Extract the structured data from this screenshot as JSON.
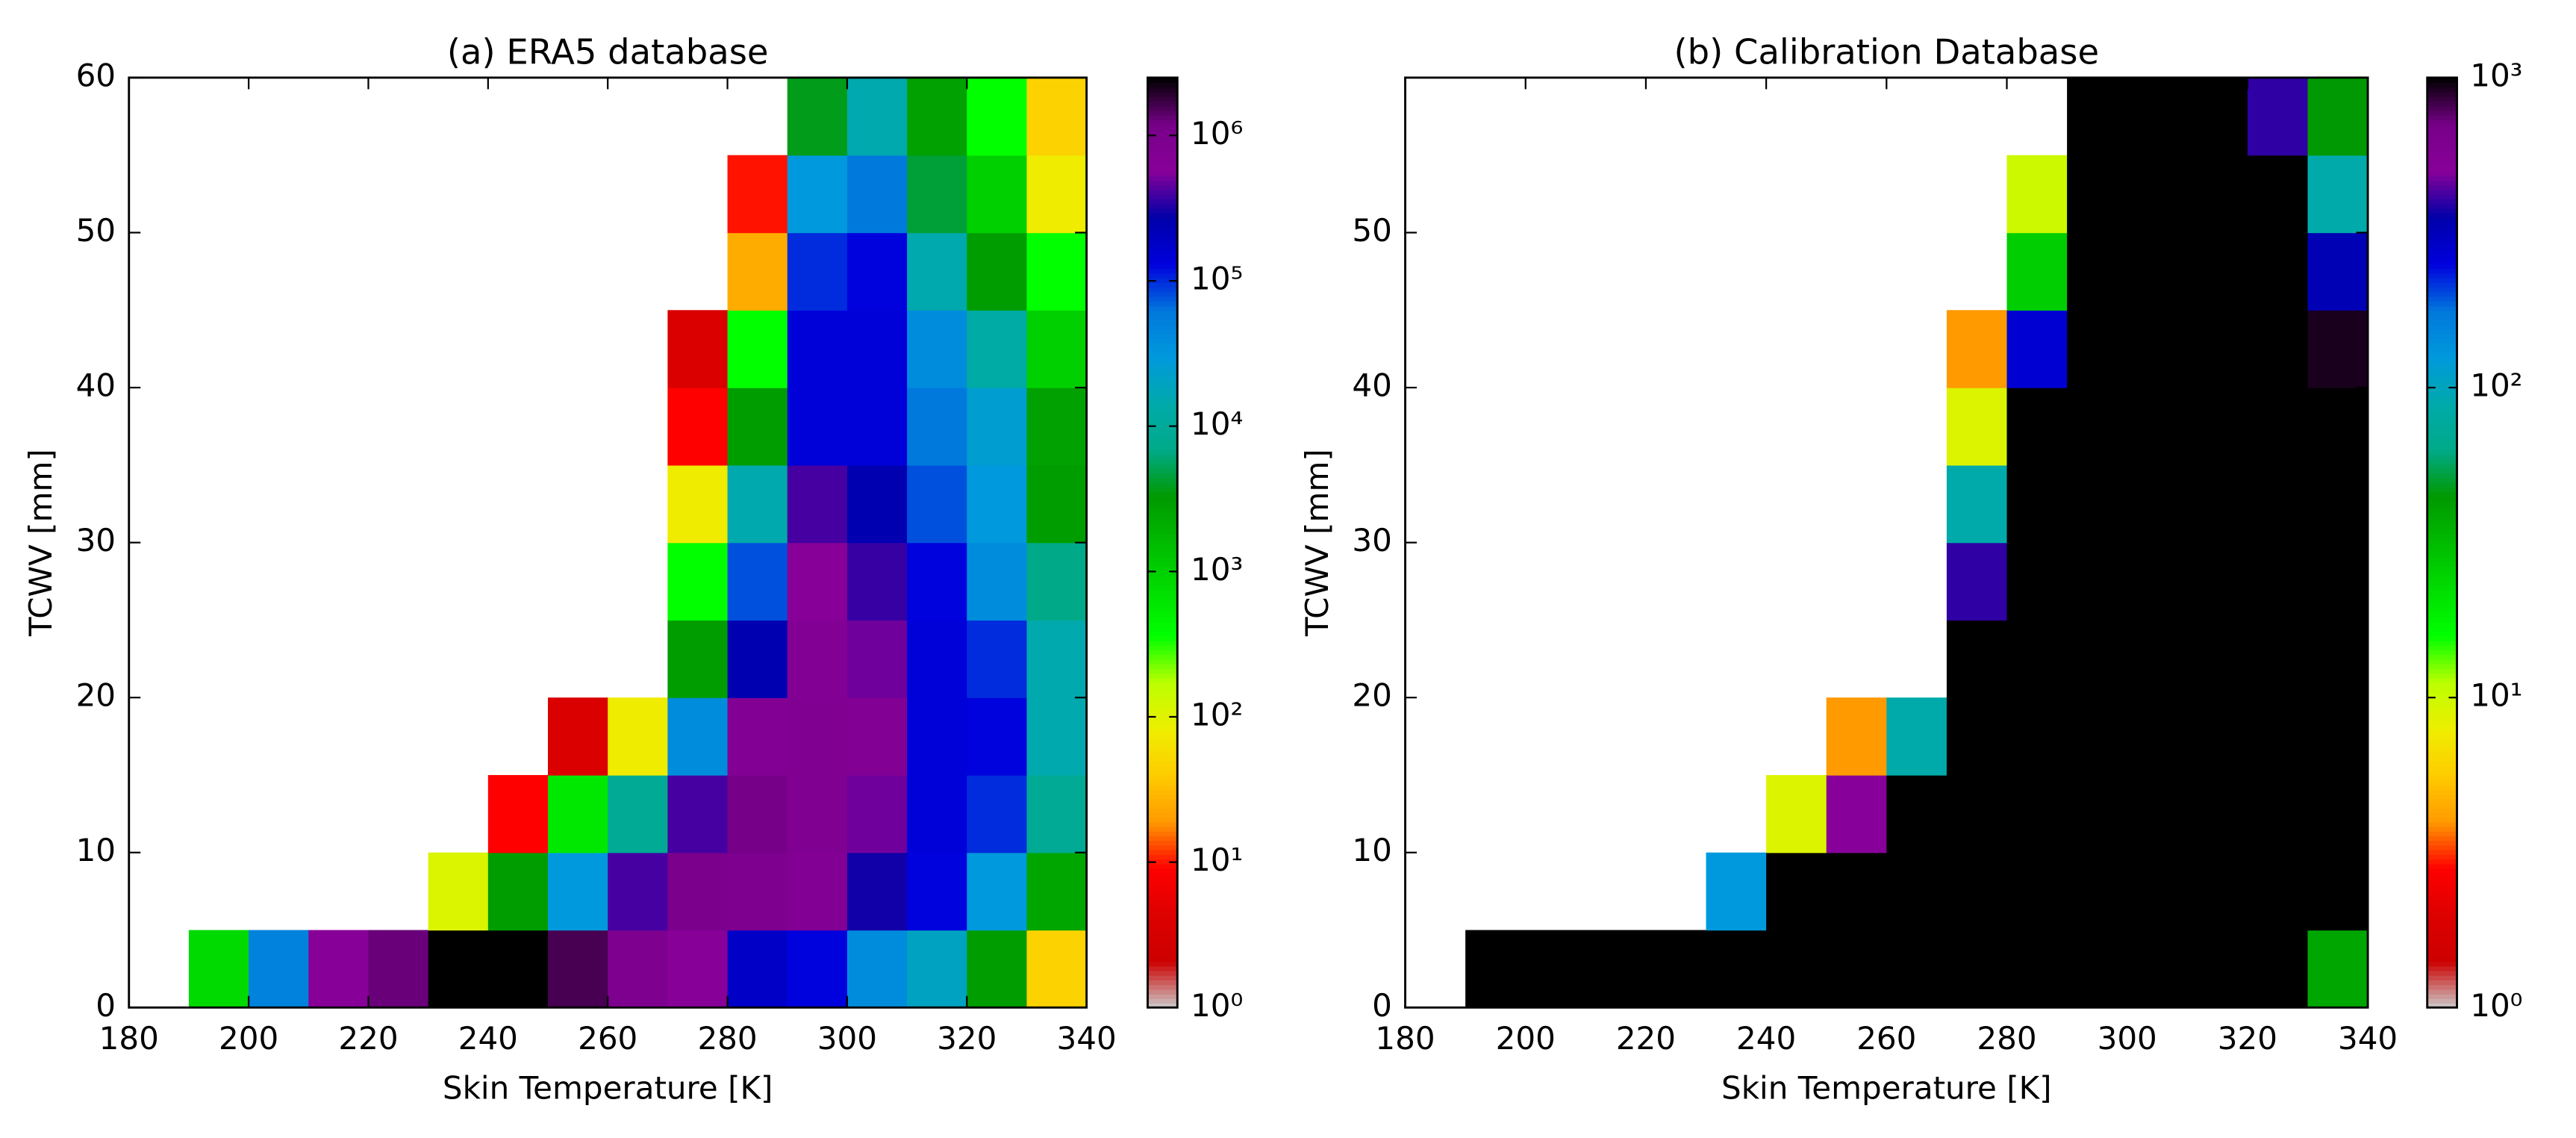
{
  "chart_data": [
    {
      "type": "heatmap",
      "title": "(a) ERA5 database",
      "xlabel": "Skin Temperature [K]",
      "ylabel": "TCWV [mm]",
      "x": [
        180,
        190,
        200,
        210,
        220,
        230,
        240,
        250,
        260,
        270,
        280,
        290,
        300,
        310,
        320,
        330,
        340
      ],
      "y": [
        0,
        5,
        10,
        15,
        20,
        25,
        30,
        35,
        40,
        45,
        50,
        55,
        60
      ],
      "values": [
        [
          null,
          800,
          50000,
          600000,
          1300000,
          2500000,
          2500000,
          1600000,
          900000,
          600000,
          180000,
          130000,
          40000,
          20000,
          3000,
          46
        ],
        [
          null,
          null,
          null,
          null,
          null,
          110,
          3000,
          30000,
          400000,
          1000000,
          900000,
          700000,
          300000,
          130000,
          30000,
          2500
        ],
        [
          null,
          null,
          null,
          null,
          null,
          null,
          9,
          600,
          9000,
          400000,
          1200000,
          800000,
          500000,
          140000,
          100000,
          9000
        ],
        [
          null,
          null,
          null,
          null,
          null,
          null,
          null,
          4,
          80,
          40000,
          700000,
          800000,
          700000,
          140000,
          130000,
          15000
        ],
        [
          null,
          null,
          null,
          null,
          null,
          null,
          null,
          null,
          null,
          3000,
          250000,
          700000,
          500000,
          140000,
          100000,
          15000
        ],
        [
          null,
          null,
          null,
          null,
          null,
          null,
          null,
          null,
          null,
          360,
          80000,
          600000,
          370000,
          130000,
          40000,
          7000
        ],
        [
          null,
          null,
          null,
          null,
          null,
          null,
          null,
          null,
          null,
          80,
          15000,
          400000,
          250000,
          80000,
          30000,
          3000
        ],
        [
          null,
          null,
          null,
          null,
          null,
          null,
          null,
          null,
          null,
          9,
          3000,
          140000,
          140000,
          60000,
          25000,
          2800
        ],
        [
          null,
          null,
          null,
          null,
          null,
          null,
          null,
          null,
          null,
          4,
          360,
          140000,
          140000,
          40000,
          13000,
          1000
        ],
        [
          null,
          null,
          null,
          null,
          null,
          null,
          null,
          null,
          null,
          null,
          25,
          100000,
          130000,
          15000,
          3000,
          360
        ],
        [
          null,
          null,
          null,
          null,
          null,
          null,
          null,
          null,
          null,
          null,
          10,
          30000,
          60000,
          4500,
          1000,
          80
        ],
        [
          null,
          null,
          null,
          null,
          null,
          null,
          null,
          null,
          null,
          null,
          null,
          3800,
          15000,
          2800,
          360,
          46
        ]
      ],
      "xlim": [
        180,
        340
      ],
      "ylim": [
        0,
        60
      ],
      "xticks": [
        180,
        200,
        220,
        240,
        260,
        280,
        300,
        320,
        340
      ],
      "yticks": [
        0,
        10,
        20,
        30,
        40,
        50,
        60
      ],
      "colormap": "nipy_spectral_r",
      "log_color": true,
      "clim": [
        1,
        2500000
      ],
      "cticks": [
        {
          "value": 1,
          "label": "10⁰"
        },
        {
          "value": 10,
          "label": "10¹"
        },
        {
          "value": 100,
          "label": "10²"
        },
        {
          "value": 1000,
          "label": "10³"
        },
        {
          "value": 10000,
          "label": "10⁴"
        },
        {
          "value": 100000,
          "label": "10⁵"
        },
        {
          "value": 1000000,
          "label": "10⁶"
        }
      ]
    },
    {
      "type": "heatmap",
      "title": "(b) Calibration Database",
      "xlabel": "Skin Temperature [K]",
      "ylabel": "TCWV [mm]",
      "x": [
        180,
        190,
        200,
        210,
        220,
        230,
        240,
        250,
        260,
        270,
        280,
        290,
        300,
        310,
        320,
        330,
        340
      ],
      "y": [
        0,
        5,
        10,
        15,
        20,
        25,
        30,
        35,
        40,
        45,
        50,
        55,
        60
      ],
      "values": [
        [
          null,
          1000,
          1000,
          1000,
          1000,
          1000,
          1000,
          1000,
          1000,
          1000,
          1000,
          1000,
          1000,
          1000,
          1000,
          39
        ],
        [
          null,
          null,
          null,
          null,
          null,
          126,
          1000,
          1000,
          1000,
          1000,
          1000,
          1000,
          1000,
          1000,
          1000,
          1000
        ],
        [
          null,
          null,
          null,
          null,
          null,
          null,
          9,
          500,
          1000,
          1000,
          1000,
          1000,
          1000,
          1000,
          1000,
          1000
        ],
        [
          null,
          null,
          null,
          null,
          null,
          null,
          null,
          4,
          89,
          1000,
          1000,
          1000,
          1000,
          1000,
          1000,
          1000
        ],
        [
          null,
          null,
          null,
          null,
          null,
          null,
          null,
          null,
          null,
          1000,
          1000,
          1000,
          1000,
          1000,
          1000,
          1000
        ],
        [
          null,
          null,
          null,
          null,
          null,
          null,
          null,
          null,
          null,
          400,
          1000,
          1000,
          1000,
          1000,
          1000,
          1000
        ],
        [
          null,
          null,
          null,
          null,
          null,
          null,
          null,
          null,
          null,
          89,
          1000,
          1000,
          1000,
          1000,
          1000,
          1000
        ],
        [
          null,
          null,
          null,
          null,
          null,
          null,
          null,
          null,
          null,
          9,
          1000,
          1000,
          1000,
          1000,
          1000,
          1000
        ],
        [
          null,
          null,
          null,
          null,
          null,
          null,
          null,
          null,
          null,
          4,
          270,
          1000,
          1000,
          1000,
          1000,
          930
        ],
        [
          null,
          null,
          null,
          null,
          null,
          null,
          null,
          null,
          null,
          null,
          26,
          1000,
          1000,
          1000,
          1000,
          330
        ],
        [
          null,
          null,
          null,
          null,
          null,
          null,
          null,
          null,
          null,
          null,
          10,
          1000,
          1000,
          1000,
          1000,
          89
        ],
        [
          null,
          null,
          null,
          null,
          null,
          null,
          null,
          null,
          null,
          null,
          null,
          1000,
          1000,
          1000,
          400,
          45
        ]
      ],
      "xlim": [
        180,
        340
      ],
      "ylim": [
        0,
        60
      ],
      "xticks": [
        180,
        200,
        220,
        240,
        260,
        280,
        300,
        320,
        340
      ],
      "yticks": [
        0,
        10,
        20,
        30,
        40,
        50
      ],
      "colormap": "nipy_spectral_r",
      "log_color": true,
      "clim": [
        1,
        1000
      ],
      "cticks": [
        {
          "value": 1,
          "label": "10⁰"
        },
        {
          "value": 10,
          "label": "10¹"
        },
        {
          "value": 100,
          "label": "10²"
        },
        {
          "value": 1000,
          "label": "10³"
        }
      ]
    }
  ]
}
